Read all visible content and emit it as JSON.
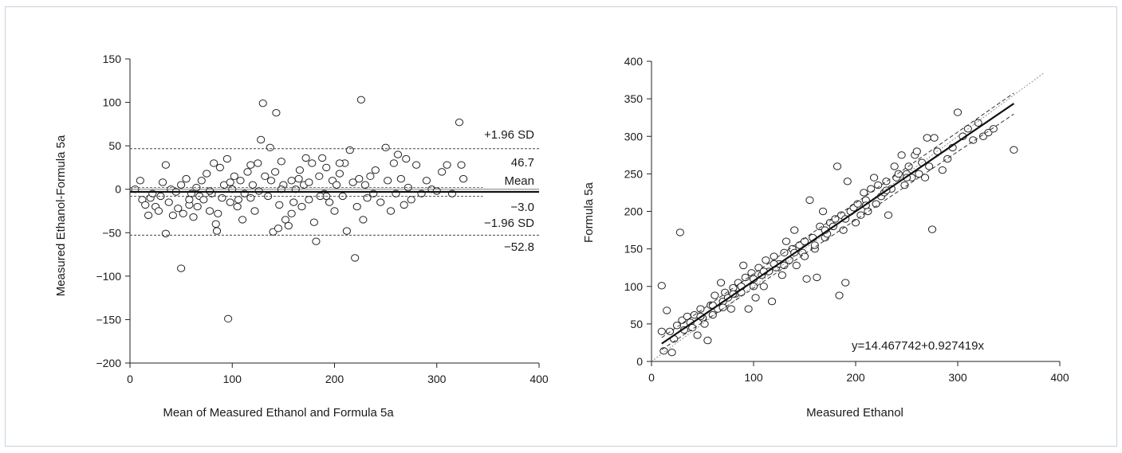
{
  "chart_data": [
    {
      "type": "scatter",
      "xlabel": "Mean of Measured Ethanol and Formula 5a",
      "ylabel": "Measured Ethanol-Formula 5a",
      "xlim": [
        0,
        400
      ],
      "ylim": [
        -200,
        150
      ],
      "xticks": [
        "0",
        "100",
        "200",
        "300",
        "400"
      ],
      "yticks": [
        "150",
        "100",
        "50",
        "0",
        "−50",
        "−100",
        "−150",
        "−200"
      ],
      "grid": false,
      "reference_lines": {
        "mean": -3.0,
        "upper_loa": 46.7,
        "lower_loa": -52.8,
        "x_extent": [
          0,
          345
        ]
      },
      "annotations": {
        "upper_label": "+1.96 SD",
        "upper_value": "46.7",
        "mean_label": "Mean",
        "mean_value": "−3.0",
        "lower_label": "−1.96 SD",
        "lower_value": "−52.8"
      },
      "points": [
        [
          5,
          0
        ],
        [
          10,
          10
        ],
        [
          12,
          -12
        ],
        [
          15,
          -18
        ],
        [
          18,
          -30
        ],
        [
          20,
          -10
        ],
        [
          22,
          -5
        ],
        [
          25,
          -20
        ],
        [
          28,
          -25
        ],
        [
          30,
          -8
        ],
        [
          32,
          8
        ],
        [
          35,
          28
        ],
        [
          35,
          -51
        ],
        [
          38,
          -15
        ],
        [
          40,
          0
        ],
        [
          42,
          -30
        ],
        [
          45,
          -3
        ],
        [
          47,
          -22
        ],
        [
          50,
          5
        ],
        [
          50,
          -91
        ],
        [
          52,
          -28
        ],
        [
          55,
          12
        ],
        [
          58,
          -18
        ],
        [
          60,
          -5
        ],
        [
          62,
          -32
        ],
        [
          65,
          2
        ],
        [
          68,
          -8
        ],
        [
          70,
          10
        ],
        [
          72,
          -12
        ],
        [
          75,
          18
        ],
        [
          78,
          -25
        ],
        [
          80,
          -5
        ],
        [
          82,
          30
        ],
        [
          84,
          -40
        ],
        [
          85,
          -48
        ],
        [
          88,
          25
        ],
        [
          90,
          -10
        ],
        [
          92,
          5
        ],
        [
          95,
          35
        ],
        [
          96,
          -149
        ],
        [
          98,
          -15
        ],
        [
          100,
          0
        ],
        [
          102,
          15
        ],
        [
          105,
          -20
        ],
        [
          108,
          10
        ],
        [
          110,
          -35
        ],
        [
          112,
          -5
        ],
        [
          115,
          20
        ],
        [
          118,
          -10
        ],
        [
          120,
          5
        ],
        [
          122,
          -25
        ],
        [
          125,
          30
        ],
        [
          128,
          57
        ],
        [
          130,
          99
        ],
        [
          132,
          15
        ],
        [
          135,
          -8
        ],
        [
          137,
          48
        ],
        [
          140,
          -49
        ],
        [
          142,
          20
        ],
        [
          143,
          88
        ],
        [
          145,
          -45
        ],
        [
          148,
          32
        ],
        [
          150,
          5
        ],
        [
          152,
          -35
        ],
        [
          155,
          -42
        ],
        [
          158,
          10
        ],
        [
          160,
          -15
        ],
        [
          162,
          0
        ],
        [
          165,
          12
        ],
        [
          168,
          -20
        ],
        [
          170,
          5
        ],
        [
          172,
          36
        ],
        [
          175,
          -12
        ],
        [
          178,
          30
        ],
        [
          180,
          -38
        ],
        [
          182,
          -60
        ],
        [
          185,
          15
        ],
        [
          188,
          36
        ],
        [
          190,
          -5
        ],
        [
          192,
          25
        ],
        [
          195,
          -15
        ],
        [
          198,
          10
        ],
        [
          200,
          -25
        ],
        [
          202,
          5
        ],
        [
          205,
          18
        ],
        [
          208,
          -8
        ],
        [
          210,
          30
        ],
        [
          212,
          -48
        ],
        [
          215,
          45
        ],
        [
          218,
          8
        ],
        [
          220,
          -79
        ],
        [
          222,
          -20
        ],
        [
          224,
          12
        ],
        [
          226,
          103
        ],
        [
          228,
          -35
        ],
        [
          230,
          5
        ],
        [
          232,
          -10
        ],
        [
          235,
          15
        ],
        [
          238,
          -5
        ],
        [
          240,
          22
        ],
        [
          245,
          -15
        ],
        [
          250,
          48
        ],
        [
          252,
          10
        ],
        [
          255,
          -25
        ],
        [
          258,
          30
        ],
        [
          260,
          -5
        ],
        [
          262,
          40
        ],
        [
          265,
          12
        ],
        [
          268,
          -18
        ],
        [
          270,
          35
        ],
        [
          272,
          2
        ],
        [
          275,
          -12
        ],
        [
          280,
          28
        ],
        [
          285,
          -5
        ],
        [
          290,
          10
        ],
        [
          295,
          0
        ],
        [
          300,
          -2
        ],
        [
          305,
          20
        ],
        [
          310,
          28
        ],
        [
          315,
          -5
        ],
        [
          322,
          77
        ],
        [
          324,
          28
        ],
        [
          326,
          12
        ],
        [
          138,
          10
        ],
        [
          148,
          0
        ],
        [
          158,
          -28
        ],
        [
          175,
          8
        ],
        [
          192,
          -8
        ],
        [
          205,
          30
        ],
        [
          118,
          28
        ],
        [
          98,
          8
        ],
        [
          78,
          -2
        ],
        [
          58,
          -12
        ],
        [
          66,
          -20
        ],
        [
          86,
          -28
        ],
        [
          106,
          -12
        ],
        [
          126,
          -2
        ],
        [
          146,
          -18
        ],
        [
          166,
          22
        ],
        [
          186,
          -8
        ]
      ]
    },
    {
      "type": "scatter",
      "xlabel": "Measured Ethanol",
      "ylabel": "Formula 5a",
      "xlim": [
        0,
        400
      ],
      "ylim": [
        0,
        400
      ],
      "xticks": [
        "0",
        "100",
        "200",
        "300",
        "400"
      ],
      "yticks": [
        "400",
        "350",
        "300",
        "250",
        "200",
        "150",
        "100",
        "50",
        "0"
      ],
      "grid": false,
      "fit": {
        "intercept": 14.467742,
        "slope": 0.927419,
        "x_extent": [
          10,
          355
        ]
      },
      "identity_line": {
        "x_extent": [
          0,
          385
        ]
      },
      "equation_label": "y=14.467742+0.927419x",
      "points": [
        [
          10,
          40
        ],
        [
          10,
          101
        ],
        [
          12,
          14
        ],
        [
          15,
          68
        ],
        [
          18,
          40
        ],
        [
          20,
          12
        ],
        [
          22,
          30
        ],
        [
          25,
          48
        ],
        [
          28,
          172
        ],
        [
          30,
          55
        ],
        [
          32,
          42
        ],
        [
          35,
          60
        ],
        [
          38,
          52
        ],
        [
          40,
          45
        ],
        [
          42,
          62
        ],
        [
          45,
          35
        ],
        [
          48,
          70
        ],
        [
          50,
          58
        ],
        [
          52,
          50
        ],
        [
          55,
          28
        ],
        [
          58,
          75
        ],
        [
          60,
          62
        ],
        [
          62,
          88
        ],
        [
          65,
          70
        ],
        [
          68,
          105
        ],
        [
          70,
          80
        ],
        [
          72,
          92
        ],
        [
          75,
          85
        ],
        [
          78,
          70
        ],
        [
          80,
          98
        ],
        [
          82,
          90
        ],
        [
          85,
          105
        ],
        [
          88,
          92
        ],
        [
          90,
          128
        ],
        [
          92,
          112
        ],
        [
          95,
          70
        ],
        [
          98,
          118
        ],
        [
          100,
          100
        ],
        [
          102,
          85
        ],
        [
          105,
          125
        ],
        [
          108,
          115
        ],
        [
          110,
          100
        ],
        [
          112,
          135
        ],
        [
          115,
          120
        ],
        [
          118,
          80
        ],
        [
          120,
          140
        ],
        [
          122,
          125
        ],
        [
          125,
          130
        ],
        [
          128,
          115
        ],
        [
          130,
          145
        ],
        [
          132,
          160
        ],
        [
          135,
          135
        ],
        [
          138,
          150
        ],
        [
          140,
          175
        ],
        [
          142,
          128
        ],
        [
          145,
          155
        ],
        [
          148,
          145
        ],
        [
          150,
          140
        ],
        [
          152,
          110
        ],
        [
          155,
          215
        ],
        [
          158,
          165
        ],
        [
          160,
          150
        ],
        [
          162,
          112
        ],
        [
          165,
          180
        ],
        [
          168,
          200
        ],
        [
          170,
          165
        ],
        [
          172,
          170
        ],
        [
          175,
          185
        ],
        [
          178,
          180
        ],
        [
          180,
          190
        ],
        [
          182,
          260
        ],
        [
          184,
          88
        ],
        [
          186,
          195
        ],
        [
          188,
          175
        ],
        [
          190,
          105
        ],
        [
          192,
          240
        ],
        [
          195,
          200
        ],
        [
          198,
          205
        ],
        [
          200,
          185
        ],
        [
          202,
          210
        ],
        [
          205,
          195
        ],
        [
          208,
          225
        ],
        [
          210,
          215
        ],
        [
          212,
          200
        ],
        [
          215,
          230
        ],
        [
          218,
          245
        ],
        [
          220,
          210
        ],
        [
          222,
          235
        ],
        [
          225,
          220
        ],
        [
          228,
          225
        ],
        [
          230,
          240
        ],
        [
          232,
          195
        ],
        [
          235,
          230
        ],
        [
          238,
          260
        ],
        [
          240,
          245
        ],
        [
          242,
          250
        ],
        [
          245,
          275
        ],
        [
          248,
          235
        ],
        [
          250,
          250
        ],
        [
          252,
          260
        ],
        [
          255,
          245
        ],
        [
          258,
          275
        ],
        [
          260,
          280
        ],
        [
          262,
          250
        ],
        [
          265,
          265
        ],
        [
          268,
          245
        ],
        [
          270,
          298
        ],
        [
          272,
          260
        ],
        [
          275,
          176
        ],
        [
          277,
          298
        ],
        [
          280,
          280
        ],
        [
          285,
          255
        ],
        [
          290,
          270
        ],
        [
          295,
          285
        ],
        [
          300,
          332
        ],
        [
          305,
          300
        ],
        [
          310,
          310
        ],
        [
          315,
          295
        ],
        [
          320,
          318
        ],
        [
          325,
          300
        ],
        [
          330,
          305
        ],
        [
          335,
          310
        ],
        [
          355,
          282
        ],
        [
          160,
          155
        ],
        [
          140,
          145
        ],
        [
          120,
          130
        ],
        [
          100,
          110
        ],
        [
          80,
          90
        ],
        [
          60,
          75
        ],
        [
          170,
          175
        ],
        [
          190,
          190
        ],
        [
          210,
          208
        ],
        [
          230,
          228
        ],
        [
          250,
          245
        ],
        [
          110,
          120
        ],
        [
          130,
          128
        ],
        [
          150,
          160
        ],
        [
          48,
          60
        ],
        [
          70,
          72
        ],
        [
          88,
          100
        ]
      ]
    }
  ]
}
